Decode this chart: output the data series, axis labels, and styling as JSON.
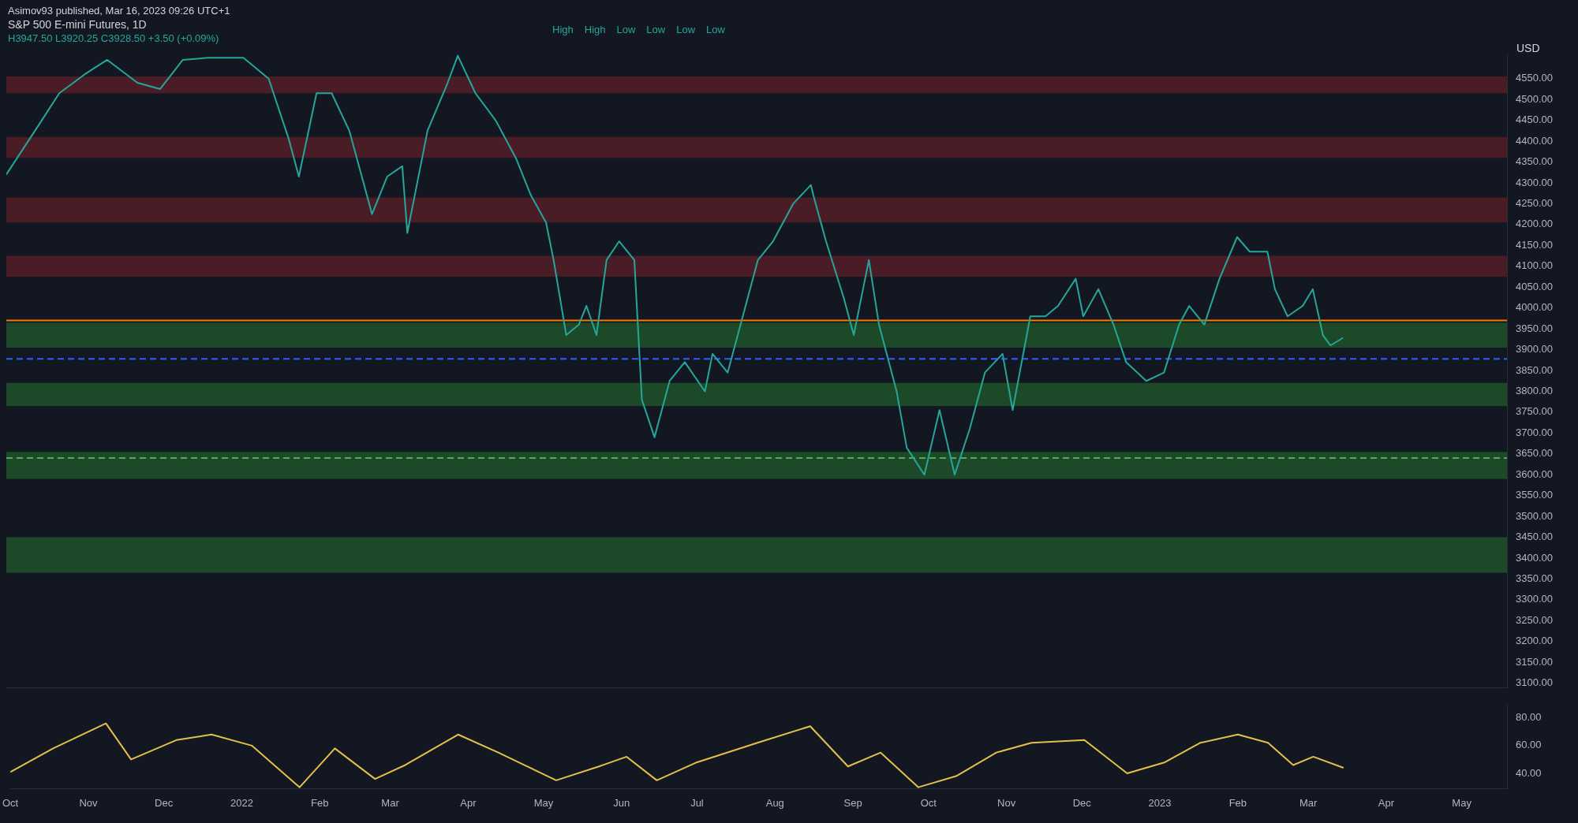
{
  "chart_data": [
    {
      "type": "line",
      "title": "S&P 500 E-mini Futures, 1D",
      "subtitle": "H3947.50 L3920.25 C3928.50 +3.50 (+0.09%)",
      "ylabel": "USD",
      "annotations": [
        "Asimov93 published, Mar 16, 2023 09:26 UTC+1",
        "High",
        "High",
        "Low",
        "Low",
        "Low",
        "Low"
      ],
      "series": [
        {
          "color": "#26a69a",
          "x": [
            "2021-10-01",
            "2021-10-14",
            "2021-10-22",
            "2021-11-01",
            "2021-11-10",
            "2021-11-22",
            "2021-12-01",
            "2021-12-10",
            "2021-12-20",
            "2022-01-03",
            "2022-01-13",
            "2022-01-21",
            "2022-01-25",
            "2022-02-01",
            "2022-02-07",
            "2022-02-14",
            "2022-02-23",
            "2022-03-01",
            "2022-03-07",
            "2022-03-09",
            "2022-03-17",
            "2022-03-25",
            "2022-03-29",
            "2022-04-05",
            "2022-04-13",
            "2022-04-21",
            "2022-04-27",
            "2022-05-03",
            "2022-05-06",
            "2022-05-11",
            "2022-05-16",
            "2022-05-19",
            "2022-05-23",
            "2022-05-27",
            "2022-06-01",
            "2022-06-07",
            "2022-06-10",
            "2022-06-15",
            "2022-06-21",
            "2022-06-27",
            "2022-07-05",
            "2022-07-08",
            "2022-07-14",
            "2022-07-20",
            "2022-07-26",
            "2022-08-01",
            "2022-08-09",
            "2022-08-16",
            "2022-08-17",
            "2022-08-22",
            "2022-08-29",
            "2022-09-02",
            "2022-09-08",
            "2022-09-12",
            "2022-09-19",
            "2022-09-23",
            "2022-09-30",
            "2022-10-06",
            "2022-10-12",
            "2022-10-18",
            "2022-10-24",
            "2022-10-31",
            "2022-11-04",
            "2022-11-11",
            "2022-11-17",
            "2022-11-22",
            "2022-11-29",
            "2022-12-02",
            "2022-12-08",
            "2022-12-14",
            "2022-12-19",
            "2022-12-27",
            "2023-01-03",
            "2023-01-09",
            "2023-01-13",
            "2023-01-19",
            "2023-01-25",
            "2023-02-01",
            "2023-02-06",
            "2023-02-13",
            "2023-02-16",
            "2023-02-21",
            "2023-02-27",
            "2023-03-03",
            "2023-03-07",
            "2023-03-10",
            "2023-03-15"
          ],
          "values": [
            4320,
            4440,
            4515,
            4560,
            4595,
            4540,
            4525,
            4595,
            4600,
            4600,
            4550,
            4405,
            4315,
            4515,
            4515,
            4425,
            4225,
            4315,
            4340,
            4180,
            4425,
            4540,
            4605,
            4515,
            4450,
            4360,
            4270,
            4205,
            4115,
            3935,
            3960,
            4005,
            3935,
            4115,
            4160,
            4115,
            3780,
            3690,
            3825,
            3870,
            3800,
            3890,
            3845,
            3980,
            4115,
            4160,
            4250,
            4295,
            4270,
            4160,
            4025,
            3935,
            4115,
            3960,
            3800,
            3665,
            3600,
            3755,
            3600,
            3710,
            3845,
            3890,
            3755,
            3980,
            3980,
            4005,
            4070,
            3980,
            4045,
            3960,
            3870,
            3825,
            3845,
            3960,
            4005,
            3960,
            4070,
            4170,
            4135,
            4135,
            4045,
            3980,
            4005,
            4045,
            3935,
            3910,
            3928.5
          ]
        }
      ],
      "bands": [
        {
          "axis": "y",
          "from": 4515,
          "to": 4555,
          "color": "#4a1c26"
        },
        {
          "axis": "y",
          "from": 4360,
          "to": 4410,
          "color": "#4a1c26"
        },
        {
          "axis": "y",
          "from": 4205,
          "to": 4265,
          "color": "#4a1c26"
        },
        {
          "axis": "y",
          "from": 4075,
          "to": 4125,
          "color": "#4a1c26"
        },
        {
          "axis": "y",
          "from": 3905,
          "to": 3965,
          "color": "#1c4a28"
        },
        {
          "axis": "y",
          "from": 3765,
          "to": 3820,
          "color": "#1c4a28"
        },
        {
          "axis": "y",
          "from": 3590,
          "to": 3655,
          "color": "#1c4a28"
        },
        {
          "axis": "y",
          "from": 3365,
          "to": 3450,
          "color": "#1c4a28"
        }
      ],
      "ref_lines": [
        {
          "axis": "y",
          "value": 3970,
          "color": "#f57c00",
          "line_style": "solid"
        },
        {
          "axis": "y",
          "value": 3878,
          "color": "#2962ff",
          "line_style": "dashed"
        },
        {
          "axis": "y",
          "value": 3640,
          "color": "#4caf50",
          "line_style": "dashed"
        }
      ],
      "xlim": [
        "2021-10-01",
        "2023-05-19"
      ],
      "ylim": [
        3090,
        4610
      ],
      "yticks": [
        {
          "value": 3100,
          "label": "3100.00"
        },
        {
          "value": 3150,
          "label": "3150.00"
        },
        {
          "value": 3200,
          "label": "3200.00"
        },
        {
          "value": 3250,
          "label": "3250.00"
        },
        {
          "value": 3300,
          "label": "3300.00"
        },
        {
          "value": 3350,
          "label": "3350.00"
        },
        {
          "value": 3400,
          "label": "3400.00"
        },
        {
          "value": 3450,
          "label": "3450.00"
        },
        {
          "value": 3500,
          "label": "3500.00"
        },
        {
          "value": 3550,
          "label": "3550.00"
        },
        {
          "value": 3600,
          "label": "3600.00"
        },
        {
          "value": 3650,
          "label": "3650.00"
        },
        {
          "value": 3700,
          "label": "3700.00"
        },
        {
          "value": 3750,
          "label": "3750.00"
        },
        {
          "value": 3800,
          "label": "3800.00"
        },
        {
          "value": 3850,
          "label": "3850.00"
        },
        {
          "value": 3900,
          "label": "3900.00"
        },
        {
          "value": 3950,
          "label": "3950.00"
        },
        {
          "value": 4000,
          "label": "4000.00"
        },
        {
          "value": 4050,
          "label": "4050.00"
        },
        {
          "value": 4100,
          "label": "4100.00"
        },
        {
          "value": 4150,
          "label": "4150.00"
        },
        {
          "value": 4200,
          "label": "4200.00"
        },
        {
          "value": 4250,
          "label": "4250.00"
        },
        {
          "value": 4300,
          "label": "4300.00"
        },
        {
          "value": 4350,
          "label": "4350.00"
        },
        {
          "value": 4400,
          "label": "4400.00"
        },
        {
          "value": 4450,
          "label": "4450.00"
        },
        {
          "value": 4500,
          "label": "4500.00"
        },
        {
          "value": 4550,
          "label": "4550.00"
        }
      ],
      "tick_labels": "y",
      "marker": "none",
      "line_style": "solid"
    },
    {
      "type": "line",
      "series": [
        {
          "color": "#e2c04a",
          "x": [
            "2021-10-01",
            "2021-10-18",
            "2021-11-08",
            "2021-11-18",
            "2021-12-06",
            "2021-12-20",
            "2022-01-05",
            "2022-01-24",
            "2022-02-07",
            "2022-02-23",
            "2022-03-07",
            "2022-03-28",
            "2022-04-13",
            "2022-05-06",
            "2022-05-23",
            "2022-06-03",
            "2022-06-15",
            "2022-07-01",
            "2022-07-25",
            "2022-08-15",
            "2022-08-30",
            "2022-09-12",
            "2022-09-27",
            "2022-10-12",
            "2022-10-28",
            "2022-11-11",
            "2022-12-02",
            "2022-12-19",
            "2023-01-03",
            "2023-01-17",
            "2023-02-01",
            "2023-02-13",
            "2023-02-23",
            "2023-03-03",
            "2023-03-15"
          ],
          "values": [
            41,
            58,
            76,
            50,
            64,
            68,
            60,
            30,
            58,
            36,
            46,
            68,
            55,
            35,
            45,
            52,
            35,
            48,
            62,
            74,
            45,
            55,
            30,
            38,
            55,
            62,
            64,
            40,
            48,
            62,
            68,
            62,
            46,
            52,
            44
          ]
        }
      ],
      "xlim": [
        "2021-10-01",
        "2023-05-19"
      ],
      "xticks": [
        {
          "value": "2021-10-01",
          "label": "Oct"
        },
        {
          "value": "2021-11-01",
          "label": "Nov"
        },
        {
          "value": "2021-12-01",
          "label": "Dec"
        },
        {
          "value": "2022-01-01",
          "label": "2022"
        },
        {
          "value": "2022-02-01",
          "label": "Feb"
        },
        {
          "value": "2022-03-01",
          "label": "Mar"
        },
        {
          "value": "2022-04-01",
          "label": "Apr"
        },
        {
          "value": "2022-05-01",
          "label": "May"
        },
        {
          "value": "2022-06-01",
          "label": "Jun"
        },
        {
          "value": "2022-07-01",
          "label": "Jul"
        },
        {
          "value": "2022-08-01",
          "label": "Aug"
        },
        {
          "value": "2022-09-01",
          "label": "Sep"
        },
        {
          "value": "2022-10-01",
          "label": "Oct"
        },
        {
          "value": "2022-11-01",
          "label": "Nov"
        },
        {
          "value": "2022-12-01",
          "label": "Dec"
        },
        {
          "value": "2023-01-01",
          "label": "2023"
        },
        {
          "value": "2023-02-01",
          "label": "Feb"
        },
        {
          "value": "2023-03-01",
          "label": "Mar"
        },
        {
          "value": "2023-04-01",
          "label": "Apr"
        },
        {
          "value": "2023-05-01",
          "label": "May"
        }
      ],
      "ylim": [
        29,
        89
      ],
      "yticks": [
        {
          "value": 40,
          "label": "40.00"
        },
        {
          "value": 60,
          "label": "60.00"
        },
        {
          "value": 80,
          "label": "80.00"
        }
      ],
      "marker": "none",
      "line_style": "solid"
    }
  ]
}
